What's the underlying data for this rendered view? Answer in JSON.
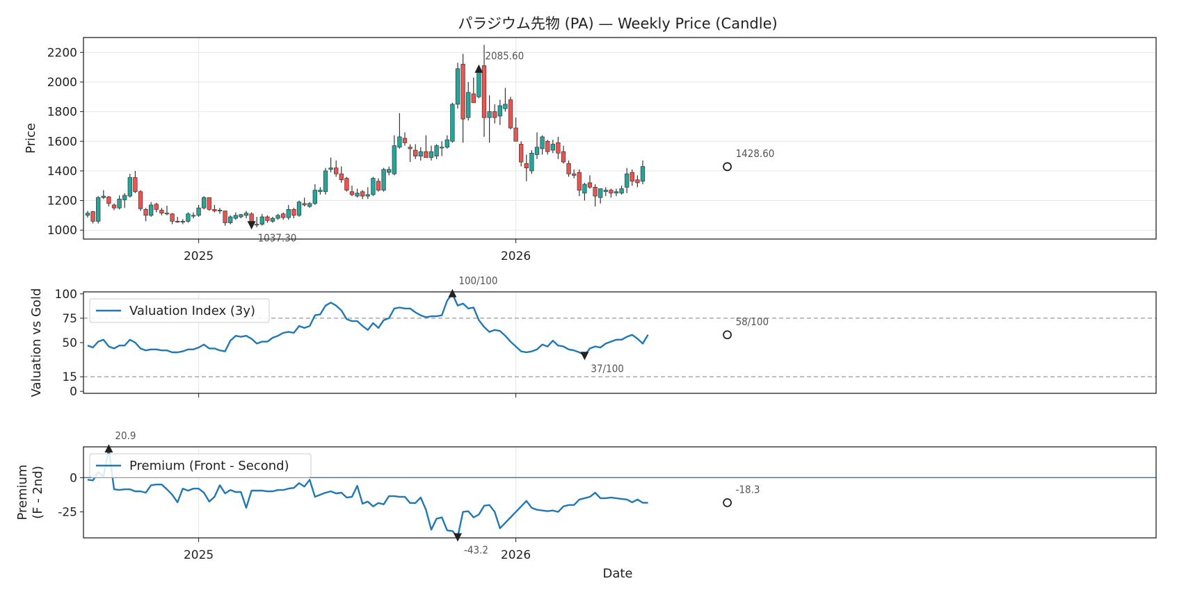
{
  "chart_data": [
    {
      "type": "candlestick",
      "title": "パラジウム先物 (PA) — Weekly Price (Candle)",
      "ylabel": "Price",
      "ylim": [
        940,
        2300
      ],
      "yticks": [
        1000,
        1200,
        1400,
        1600,
        1800,
        2000,
        2200
      ],
      "xticks": [
        {
          "label": "2025",
          "week": 21
        },
        {
          "label": "2026",
          "week": 81
        }
      ],
      "grid": true,
      "up_color": "#26a69a",
      "down_color": "#ef5350",
      "candles": [
        [
          1100,
          1130,
          1085,
          1115
        ],
        [
          1125,
          1130,
          1045,
          1060
        ],
        [
          1060,
          1230,
          1045,
          1220
        ],
        [
          1220,
          1270,
          1210,
          1230
        ],
        [
          1225,
          1230,
          1160,
          1180
        ],
        [
          1170,
          1180,
          1135,
          1150
        ],
        [
          1150,
          1235,
          1140,
          1210
        ],
        [
          1205,
          1250,
          1150,
          1235
        ],
        [
          1230,
          1380,
          1220,
          1355
        ],
        [
          1355,
          1400,
          1250,
          1260
        ],
        [
          1260,
          1270,
          1130,
          1145
        ],
        [
          1140,
          1150,
          1060,
          1100
        ],
        [
          1100,
          1190,
          1090,
          1170
        ],
        [
          1175,
          1185,
          1120,
          1140
        ],
        [
          1135,
          1150,
          1100,
          1115
        ],
        [
          1115,
          1165,
          1100,
          1110
        ],
        [
          1110,
          1115,
          1040,
          1060
        ],
        [
          1060,
          1090,
          1050,
          1055
        ],
        [
          1055,
          1075,
          1040,
          1060
        ],
        [
          1060,
          1120,
          1050,
          1110
        ],
        [
          1100,
          1120,
          1080,
          1100
        ],
        [
          1100,
          1170,
          1090,
          1150
        ],
        [
          1150,
          1230,
          1140,
          1220
        ],
        [
          1220,
          1220,
          1130,
          1140
        ],
        [
          1140,
          1170,
          1120,
          1130
        ],
        [
          1130,
          1150,
          1110,
          1135
        ],
        [
          1130,
          1130,
          1030,
          1050
        ],
        [
          1050,
          1100,
          1040,
          1090
        ],
        [
          1080,
          1120,
          1070,
          1100
        ],
        [
          1090,
          1110,
          1080,
          1105
        ],
        [
          1100,
          1130,
          1080,
          1115
        ],
        [
          1110,
          1120,
          1040,
          1050
        ],
        [
          1040,
          1090,
          1020,
          1040
        ],
        [
          1040,
          1110,
          1030,
          1090
        ],
        [
          1090,
          1100,
          1050,
          1065
        ],
        [
          1060,
          1090,
          1050,
          1080
        ],
        [
          1080,
          1110,
          1070,
          1100
        ],
        [
          1110,
          1120,
          1070,
          1085
        ],
        [
          1085,
          1170,
          1070,
          1140
        ],
        [
          1140,
          1150,
          1080,
          1100
        ],
        [
          1100,
          1200,
          1090,
          1190
        ],
        [
          1180,
          1220,
          1160,
          1170
        ],
        [
          1160,
          1190,
          1150,
          1180
        ],
        [
          1180,
          1310,
          1170,
          1270
        ],
        [
          1260,
          1290,
          1240,
          1270
        ],
        [
          1260,
          1420,
          1240,
          1400
        ],
        [
          1410,
          1490,
          1390,
          1420
        ],
        [
          1420,
          1470,
          1360,
          1380
        ],
        [
          1380,
          1430,
          1320,
          1340
        ],
        [
          1350,
          1360,
          1260,
          1270
        ],
        [
          1260,
          1300,
          1230,
          1240
        ],
        [
          1230,
          1280,
          1220,
          1250
        ],
        [
          1260,
          1270,
          1210,
          1230
        ],
        [
          1230,
          1290,
          1210,
          1240
        ],
        [
          1240,
          1360,
          1230,
          1350
        ],
        [
          1330,
          1350,
          1260,
          1270
        ],
        [
          1270,
          1420,
          1260,
          1410
        ],
        [
          1390,
          1430,
          1370,
          1410
        ],
        [
          1380,
          1640,
          1370,
          1570
        ],
        [
          1560,
          1790,
          1550,
          1630
        ],
        [
          1620,
          1660,
          1570,
          1590
        ],
        [
          1560,
          1580,
          1460,
          1550
        ],
        [
          1540,
          1580,
          1480,
          1500
        ],
        [
          1500,
          1560,
          1470,
          1530
        ],
        [
          1530,
          1640,
          1490,
          1490
        ],
        [
          1490,
          1570,
          1470,
          1530
        ],
        [
          1500,
          1580,
          1480,
          1570
        ],
        [
          1560,
          1600,
          1500,
          1560
        ],
        [
          1560,
          1640,
          1550,
          1610
        ],
        [
          1600,
          1860,
          1590,
          1850
        ],
        [
          1850,
          2130,
          1820,
          2090
        ],
        [
          2120,
          2190,
          1590,
          1750
        ],
        [
          1760,
          2000,
          1740,
          1930
        ],
        [
          1920,
          2030,
          1870,
          1860
        ],
        [
          1900,
          2070,
          1890,
          2080
        ],
        [
          2110,
          2250,
          1630,
          1760
        ],
        [
          1760,
          1910,
          1590,
          1800
        ],
        [
          1800,
          1850,
          1720,
          1760
        ],
        [
          1770,
          1880,
          1710,
          1840
        ],
        [
          1820,
          1960,
          1800,
          1850
        ],
        [
          1880,
          1900,
          1680,
          1690
        ],
        [
          1690,
          1760,
          1600,
          1600
        ],
        [
          1580,
          1600,
          1430,
          1460
        ],
        [
          1450,
          1510,
          1330,
          1420
        ],
        [
          1400,
          1540,
          1380,
          1520
        ],
        [
          1510,
          1660,
          1480,
          1560
        ],
        [
          1550,
          1640,
          1510,
          1630
        ],
        [
          1600,
          1610,
          1510,
          1530
        ],
        [
          1540,
          1610,
          1520,
          1580
        ],
        [
          1590,
          1630,
          1480,
          1520
        ],
        [
          1530,
          1570,
          1450,
          1460
        ],
        [
          1450,
          1470,
          1360,
          1380
        ],
        [
          1380,
          1410,
          1350,
          1370
        ],
        [
          1390,
          1410,
          1230,
          1270
        ],
        [
          1250,
          1320,
          1200,
          1310
        ],
        [
          1320,
          1370,
          1280,
          1290
        ],
        [
          1290,
          1310,
          1160,
          1230
        ],
        [
          1220,
          1280,
          1180,
          1280
        ],
        [
          1260,
          1290,
          1230,
          1270
        ],
        [
          1270,
          1280,
          1220,
          1250
        ],
        [
          1250,
          1280,
          1230,
          1260
        ],
        [
          1250,
          1300,
          1240,
          1280
        ],
        [
          1290,
          1420,
          1250,
          1380
        ],
        [
          1390,
          1410,
          1300,
          1330
        ],
        [
          1340,
          1370,
          1290,
          1320
        ],
        [
          1330,
          1470,
          1310,
          1430
        ]
      ],
      "annotations": [
        {
          "text": "2085.60",
          "week": 74,
          "value": 2085.6,
          "marker": "up"
        },
        {
          "text": "1037.30",
          "week": 31,
          "value": 1037.3,
          "marker": "down"
        },
        {
          "text": "1428.60",
          "week": 121,
          "value": 1428.6,
          "marker": "circle"
        }
      ]
    },
    {
      "type": "line",
      "ylabel": "Valuation vs Gold",
      "ylim": [
        -2,
        102
      ],
      "yticks": [
        0,
        15,
        50,
        75,
        100
      ],
      "hlines": [
        75,
        15
      ],
      "legend": {
        "label": "Valuation Index (3y)",
        "position": "top-left"
      },
      "series": [
        {
          "name": "Valuation Index (3y)",
          "color": "#1f77b4",
          "values": [
            47,
            45,
            51,
            53,
            46,
            44,
            47,
            47,
            53,
            50,
            44,
            42,
            43,
            43,
            42,
            42,
            40,
            40,
            41,
            43,
            43,
            45,
            48,
            44,
            44,
            42,
            41,
            52,
            57,
            56,
            57,
            54,
            49,
            51,
            51,
            55,
            57,
            60,
            61,
            60,
            67,
            65,
            67,
            78,
            79,
            88,
            91,
            88,
            83,
            74,
            72,
            72,
            67,
            63,
            70,
            65,
            73,
            75,
            85,
            86,
            85,
            85,
            81,
            78,
            76,
            77,
            77,
            78,
            93,
            100,
            88,
            90,
            85,
            86,
            73,
            66,
            61,
            63,
            62,
            57,
            51,
            46,
            41,
            40,
            41,
            43,
            48,
            46,
            52,
            47,
            46,
            43,
            42,
            40,
            37,
            44,
            46,
            45,
            49,
            51,
            53,
            53,
            56,
            58,
            54,
            49,
            58
          ]
        }
      ],
      "annotations": [
        {
          "text": "100/100",
          "week": 69,
          "value": 100,
          "marker": "up"
        },
        {
          "text": "37/100",
          "week": 94,
          "value": 37,
          "marker": "down"
        },
        {
          "text": "58/100",
          "week": 121,
          "value": 58,
          "marker": "circle"
        }
      ]
    },
    {
      "type": "line",
      "ylabel": "Premium\n(F - 2nd)",
      "xlabel": "Date",
      "ylim": [
        -44,
        22.5
      ],
      "yticks": [
        0,
        -25
      ],
      "hlines": [
        0
      ],
      "legend": {
        "label": "Premium (Front - Second)",
        "position": "top-left"
      },
      "xticks": [
        {
          "label": "2025",
          "week": 21
        },
        {
          "label": "2026",
          "week": 81
        }
      ],
      "series": [
        {
          "name": "Premium (Front - Second)",
          "color": "#1f77b4",
          "values": [
            -1.5,
            -2,
            4,
            1,
            20.9,
            -8.5,
            -9,
            -8.5,
            -8.5,
            -10,
            -10,
            -11,
            -5.5,
            -5,
            -5,
            -8.5,
            -12.5,
            -18,
            -8,
            -9.5,
            -8,
            -8,
            -11,
            -17.5,
            -14,
            -5.5,
            -11.5,
            -9,
            -10.5,
            -10.5,
            -22,
            -9.5,
            -9.5,
            -9.5,
            -10,
            -10,
            -9,
            -9,
            -8,
            -7.5,
            -4,
            -6.5,
            -1.5,
            -14,
            -12.5,
            -11,
            -10,
            -11.5,
            -11,
            -14.5,
            -14,
            -6,
            -19,
            -17.5,
            -21,
            -18.5,
            -19.5,
            -13.5,
            -13.5,
            -14,
            -14,
            -18.5,
            -18.5,
            -14.5,
            -23.5,
            -38,
            -30,
            -29,
            -38.5,
            -39,
            -43.2,
            -25,
            -24.5,
            -29,
            -27,
            -20.5,
            -20,
            -25,
            -37,
            -33,
            -29,
            -25,
            -21,
            -17,
            -22,
            -23.5,
            -24,
            -24.5,
            -24,
            -25,
            -21,
            -20,
            -20,
            -16,
            -15,
            -14,
            -11,
            -15,
            -15,
            -14.5,
            -15,
            -15.5,
            -16,
            -18,
            -16,
            -18.3,
            -18.3
          ]
        }
      ],
      "annotations": [
        {
          "text": "20.9",
          "week": 4,
          "value": 20.9,
          "marker": "up"
        },
        {
          "text": "-43.2",
          "week": 70,
          "value": -43.2,
          "marker": "down"
        },
        {
          "text": "-18.3",
          "week": 121,
          "value": -18.3,
          "marker": "circle"
        }
      ]
    }
  ]
}
